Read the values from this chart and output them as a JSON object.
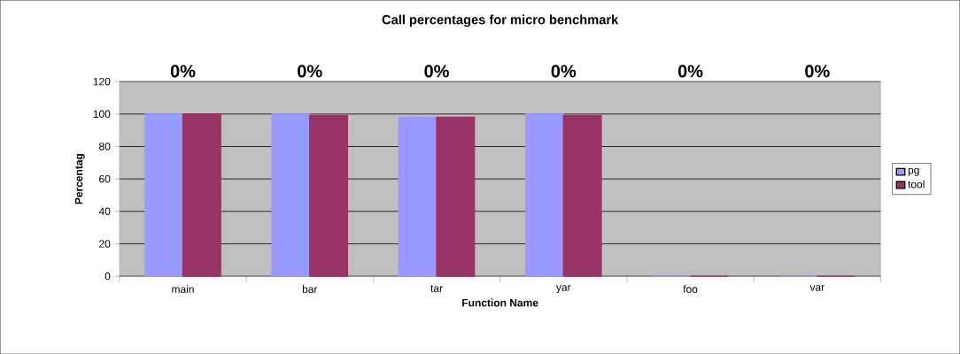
{
  "chart_data": {
    "type": "bar",
    "title": "Call percentages for micro benchmark",
    "categories": [
      "main",
      "bar",
      "tar",
      "yar",
      "foo",
      "var"
    ],
    "series": [
      {
        "name": "pg",
        "color": "#9999ff",
        "values": [
          100,
          100,
          98,
          100,
          0,
          0
        ]
      },
      {
        "name": "tool",
        "color": "#993366",
        "values": [
          100,
          99,
          98,
          99,
          0,
          0
        ]
      }
    ],
    "annotations": [
      "0%",
      "0%",
      "0%",
      "0%",
      "0%",
      "0%"
    ],
    "xlabel": "Function Name",
    "ylabel": "Percentag",
    "ylim": [
      0,
      120
    ],
    "yticks": [
      0,
      20,
      40,
      60,
      80,
      100,
      120
    ],
    "grid": "y",
    "legend": "right"
  }
}
